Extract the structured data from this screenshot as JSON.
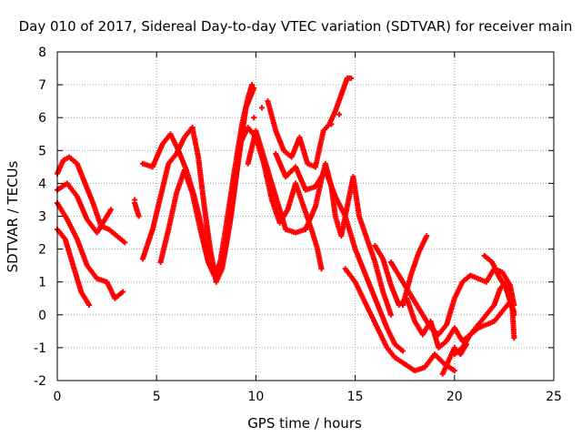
{
  "chart_data": {
    "type": "scatter",
    "title": "Day 010 of 2017, Sidereal Day-to-day VTEC variation (SDTVAR) for receiver main",
    "xlabel": "GPS time / hours",
    "ylabel": "SDTVAR / TECUs",
    "xlim": [
      0,
      25
    ],
    "ylim": [
      -2,
      8
    ],
    "xticks": [
      0,
      5,
      10,
      15,
      20,
      25
    ],
    "yticks": [
      -2,
      -1,
      0,
      1,
      2,
      3,
      4,
      5,
      6,
      7,
      8
    ],
    "grid": true,
    "marker": "+",
    "color": "#ff0000",
    "series": [
      {
        "name": "track-1",
        "points": [
          [
            0,
            4.3
          ],
          [
            0.3,
            4.7
          ],
          [
            0.6,
            4.8
          ],
          [
            1.0,
            4.6
          ],
          [
            1.4,
            4.0
          ],
          [
            1.8,
            3.4
          ],
          [
            2.2,
            2.7
          ],
          [
            2.6,
            2.6
          ],
          [
            3.0,
            2.4
          ],
          [
            3.4,
            2.2
          ]
        ]
      },
      {
        "name": "track-2",
        "points": [
          [
            0,
            3.8
          ],
          [
            0.5,
            4.0
          ],
          [
            1.0,
            3.6
          ],
          [
            1.5,
            2.9
          ],
          [
            2.0,
            2.5
          ],
          [
            2.4,
            2.9
          ],
          [
            2.7,
            3.2
          ]
        ]
      },
      {
        "name": "track-3",
        "points": [
          [
            0,
            3.4
          ],
          [
            0.5,
            2.9
          ],
          [
            1.0,
            2.3
          ],
          [
            1.5,
            1.5
          ],
          [
            2.0,
            1.1
          ],
          [
            2.5,
            1.0
          ],
          [
            2.9,
            0.5
          ],
          [
            3.3,
            0.7
          ]
        ]
      },
      {
        "name": "track-4",
        "points": [
          [
            0,
            2.6
          ],
          [
            0.4,
            2.3
          ],
          [
            0.8,
            1.5
          ],
          [
            1.2,
            0.7
          ],
          [
            1.6,
            0.3
          ]
        ]
      },
      {
        "name": "track-5",
        "points": [
          [
            4.3,
            4.6
          ],
          [
            4.8,
            4.5
          ],
          [
            5.3,
            5.2
          ],
          [
            5.7,
            5.5
          ],
          [
            6.1,
            5.0
          ],
          [
            6.5,
            4.4
          ],
          [
            6.9,
            3.6
          ],
          [
            7.3,
            2.6
          ],
          [
            7.6,
            1.6
          ],
          [
            7.9,
            1.2
          ],
          [
            8.2,
            1.6
          ],
          [
            8.5,
            2.7
          ],
          [
            8.9,
            4.3
          ],
          [
            9.3,
            5.8
          ],
          [
            9.6,
            6.6
          ],
          [
            9.8,
            7.0
          ]
        ]
      },
      {
        "name": "track-6",
        "points": [
          [
            4.3,
            1.7
          ],
          [
            4.8,
            2.6
          ],
          [
            5.2,
            3.6
          ],
          [
            5.6,
            4.6
          ],
          [
            6.0,
            4.9
          ],
          [
            6.4,
            5.4
          ],
          [
            6.8,
            5.7
          ],
          [
            7.1,
            4.8
          ],
          [
            7.4,
            3.3
          ],
          [
            7.7,
            2.0
          ],
          [
            8.0,
            1.0
          ],
          [
            8.3,
            1.4
          ],
          [
            8.7,
            2.8
          ],
          [
            9.1,
            4.6
          ],
          [
            9.5,
            6.3
          ],
          [
            9.9,
            6.9
          ]
        ]
      },
      {
        "name": "track-7",
        "points": [
          [
            5.2,
            1.6
          ],
          [
            5.6,
            2.6
          ],
          [
            6.0,
            3.7
          ],
          [
            6.4,
            4.4
          ],
          [
            6.8,
            3.7
          ],
          [
            7.2,
            2.6
          ],
          [
            7.6,
            1.6
          ],
          [
            8.0,
            1.1
          ],
          [
            8.4,
            1.8
          ],
          [
            8.8,
            3.3
          ],
          [
            9.2,
            5.2
          ],
          [
            9.6,
            5.7
          ],
          [
            10.0,
            5.4
          ],
          [
            10.4,
            4.6
          ],
          [
            10.8,
            3.5
          ],
          [
            11.2,
            2.8
          ],
          [
            11.6,
            3.2
          ],
          [
            12.0,
            4.0
          ],
          [
            12.4,
            3.3
          ],
          [
            12.8,
            2.6
          ],
          [
            13.1,
            2.0
          ],
          [
            13.3,
            1.4
          ]
        ]
      },
      {
        "name": "track-8",
        "points": [
          [
            3.9,
            3.4
          ],
          [
            4.1,
            3.0
          ]
        ]
      },
      {
        "name": "track-9",
        "points": [
          [
            9.6,
            4.6
          ],
          [
            10.0,
            5.6
          ],
          [
            10.5,
            4.6
          ],
          [
            11.0,
            3.6
          ],
          [
            11.5,
            2.6
          ],
          [
            12.0,
            2.5
          ],
          [
            12.5,
            2.6
          ],
          [
            13.0,
            3.3
          ],
          [
            13.3,
            4.1
          ],
          [
            13.5,
            4.6
          ],
          [
            13.8,
            3.9
          ],
          [
            14.0,
            3.0
          ],
          [
            14.3,
            2.4
          ],
          [
            14.6,
            3.3
          ],
          [
            14.9,
            4.2
          ],
          [
            15.2,
            3.0
          ],
          [
            15.6,
            2.3
          ],
          [
            16.0,
            1.6
          ],
          [
            16.4,
            0.7
          ],
          [
            16.8,
            0.0
          ]
        ]
      },
      {
        "name": "track-10",
        "points": [
          [
            10.6,
            6.5
          ],
          [
            11.0,
            5.6
          ],
          [
            11.4,
            5.0
          ],
          [
            11.8,
            4.8
          ],
          [
            12.2,
            5.4
          ],
          [
            12.6,
            4.6
          ],
          [
            13.0,
            4.5
          ],
          [
            13.4,
            5.6
          ],
          [
            13.7,
            5.8
          ],
          [
            14.0,
            6.2
          ],
          [
            14.3,
            6.7
          ],
          [
            14.6,
            7.2
          ],
          [
            14.8,
            7.2
          ]
        ]
      },
      {
        "name": "track-11",
        "points": [
          [
            11.0,
            4.9
          ],
          [
            11.5,
            4.2
          ],
          [
            12.0,
            4.5
          ],
          [
            12.5,
            3.8
          ],
          [
            13.0,
            3.9
          ],
          [
            13.5,
            4.4
          ],
          [
            14.0,
            3.6
          ],
          [
            14.5,
            3.0
          ],
          [
            15.0,
            2.0
          ],
          [
            15.4,
            1.4
          ],
          [
            15.8,
            0.8
          ],
          [
            16.2,
            0.2
          ],
          [
            16.6,
            -0.4
          ],
          [
            17.0,
            -0.9
          ],
          [
            17.4,
            -1.1
          ]
        ]
      },
      {
        "name": "track-12",
        "points": [
          [
            14.5,
            1.4
          ],
          [
            15.0,
            1.0
          ],
          [
            15.4,
            0.5
          ],
          [
            15.8,
            0.0
          ],
          [
            16.2,
            -0.5
          ],
          [
            16.6,
            -1.0
          ],
          [
            17.0,
            -1.3
          ],
          [
            17.5,
            -1.5
          ],
          [
            18.0,
            -1.7
          ],
          [
            18.5,
            -1.6
          ],
          [
            19.0,
            -1.2
          ],
          [
            19.5,
            -1.5
          ],
          [
            20.0,
            -1.7
          ]
        ]
      },
      {
        "name": "track-13",
        "points": [
          [
            16.0,
            2.1
          ],
          [
            16.4,
            1.7
          ],
          [
            16.8,
            0.9
          ],
          [
            17.2,
            0.3
          ],
          [
            17.6,
            0.5
          ],
          [
            18.0,
            -0.2
          ],
          [
            18.4,
            -0.6
          ],
          [
            18.8,
            -0.2
          ],
          [
            19.2,
            -1.0
          ],
          [
            19.6,
            -0.8
          ],
          [
            20.0,
            -0.4
          ],
          [
            20.4,
            -0.8
          ],
          [
            20.8,
            -0.6
          ],
          [
            21.2,
            -0.4
          ],
          [
            21.6,
            -0.3
          ],
          [
            22.0,
            -0.2
          ],
          [
            22.4,
            0.1
          ],
          [
            22.8,
            0.4
          ],
          [
            23.0,
            0.1
          ]
        ]
      },
      {
        "name": "track-14",
        "points": [
          [
            16.8,
            1.6
          ],
          [
            17.2,
            1.2
          ],
          [
            17.6,
            0.8
          ],
          [
            18.0,
            0.4
          ],
          [
            18.4,
            0.0
          ],
          [
            18.8,
            -0.4
          ],
          [
            19.2,
            -0.6
          ],
          [
            19.6,
            -0.3
          ],
          [
            20.0,
            0.5
          ],
          [
            20.4,
            1.0
          ],
          [
            20.8,
            1.2
          ],
          [
            21.2,
            1.1
          ],
          [
            21.6,
            1.0
          ],
          [
            22.0,
            1.4
          ],
          [
            22.4,
            1.3
          ],
          [
            22.8,
            0.9
          ],
          [
            23.0,
            0.3
          ]
        ]
      },
      {
        "name": "track-15",
        "points": [
          [
            17.4,
            0.3
          ],
          [
            17.8,
            1.2
          ],
          [
            18.2,
            1.9
          ],
          [
            18.6,
            2.4
          ]
        ]
      },
      {
        "name": "track-16",
        "points": [
          [
            20.0,
            -1.2
          ],
          [
            20.4,
            -1.0
          ],
          [
            20.8,
            -0.6
          ],
          [
            21.2,
            -0.3
          ],
          [
            21.6,
            0.0
          ],
          [
            22.0,
            0.3
          ],
          [
            22.3,
            0.8
          ],
          [
            22.6,
            1.0
          ],
          [
            22.9,
            0.3
          ],
          [
            23.0,
            -0.7
          ]
        ]
      },
      {
        "name": "track-17",
        "points": [
          [
            19.4,
            -1.8
          ],
          [
            19.7,
            -1.4
          ],
          [
            20.0,
            -1.0
          ],
          [
            20.3,
            -1.2
          ],
          [
            20.6,
            -0.9
          ]
        ]
      },
      {
        "name": "track-18",
        "points": [
          [
            21.5,
            1.8
          ],
          [
            21.9,
            1.6
          ],
          [
            22.2,
            1.2
          ],
          [
            22.6,
            0.8
          ],
          [
            23.0,
            0.0
          ]
        ]
      }
    ],
    "isolated_points": [
      [
        3.9,
        3.5
      ],
      [
        10.3,
        6.3
      ],
      [
        9.9,
        6.0
      ],
      [
        14.2,
        6.1
      ],
      [
        13.8,
        5.8
      ]
    ]
  }
}
